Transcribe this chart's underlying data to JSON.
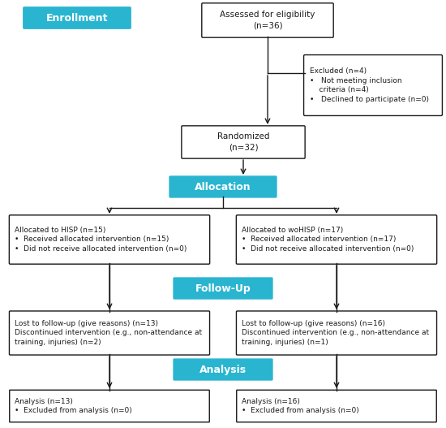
{
  "background_color": "#ffffff",
  "cyan_color": "#29b5d0",
  "box_edge_color": "#1a1a1a",
  "text_color": "#1a1a1a",
  "cyan_text_color": "#ffffff",
  "enrollment_label": "Enrollment",
  "allocation_label": "Allocation",
  "followup_label": "Follow-Up",
  "analysis_label": "Analysis",
  "assessed_text": "Assessed for eligibility\n(n=36)",
  "excluded_text": "Excluded (n=4)\n•   Not meeting inclusion\n    criteria (n=4)\n•   Declined to participate (n=0)",
  "randomized_text": "Randomized\n(n=32)",
  "hisp_text": "Allocated to HISP (n=15)\n•  Received allocated intervention (n=15)\n•  Did not receive allocated intervention (n=0)",
  "wohisp_text": "Allocated to woHISP (n=17)\n•  Received allocated intervention (n=17)\n•  Did not receive allocated intervention (n=0)",
  "followup_left_text": "Lost to follow-up (give reasons) (n=13)\nDiscontinued intervention (e.g., non-attendance at\ntraining, injuries) (n=2)",
  "followup_right_text": "Lost to follow-up (give reasons) (n=16)\nDiscontinued intervention (e.g., non-attendance at\ntraining, injuries) (n=1)",
  "analysis_left_text": "Analysis (n=13)\n•  Excluded from analysis (n=0)",
  "analysis_right_text": "Analysis (n=16)\n•  Excluded from analysis (n=0)",
  "figsize": [
    5.5,
    5.27
  ],
  "dpi": 100
}
